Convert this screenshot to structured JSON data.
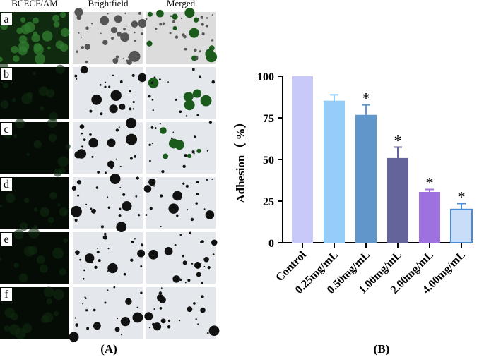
{
  "figure": {
    "columns": [
      "BCECF/AM",
      "Brightfield",
      "Merged"
    ],
    "rows": [
      "a",
      "b",
      "c",
      "d",
      "e",
      "f"
    ],
    "panel_labels": [
      "(A)",
      "(B)"
    ]
  },
  "chart_data": {
    "type": "bar",
    "y_label": "Adhesion（ %）",
    "categories": [
      "Control",
      "0.25mg/mL",
      "0.50mg/mL",
      "1.00mg/mL",
      "2.00mg/mL",
      "4.00mg/mL"
    ],
    "values": [
      100,
      85.3,
      76.8,
      50.9,
      30.5,
      20
    ],
    "errors": [
      0,
      3.5,
      6,
      6.5,
      1.5,
      3.5
    ],
    "significance": [
      null,
      null,
      "*",
      "*",
      "*",
      "*"
    ],
    "colors": [
      "#c9c9f9",
      "#95cdf9",
      "#5f97cb",
      "#64649b",
      "#9e72de",
      "#c9dcf8"
    ],
    "ylim": [
      0,
      100
    ],
    "yticks": [
      0,
      25,
      50,
      75,
      100
    ]
  }
}
